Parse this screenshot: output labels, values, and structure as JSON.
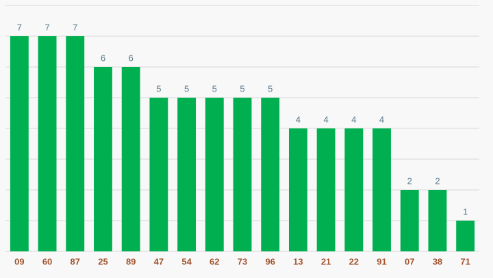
{
  "chart_data": {
    "type": "bar",
    "categories": [
      "09",
      "60",
      "87",
      "25",
      "89",
      "47",
      "54",
      "62",
      "73",
      "96",
      "13",
      "21",
      "22",
      "91",
      "07",
      "38",
      "71"
    ],
    "values": [
      7,
      7,
      7,
      6,
      6,
      5,
      5,
      5,
      5,
      5,
      4,
      4,
      4,
      4,
      2,
      2,
      1
    ],
    "color": "#00b050",
    "ylim": [
      0,
      8
    ],
    "yticks": [
      0,
      1,
      2,
      3,
      4,
      5,
      6,
      7,
      8
    ],
    "grid": true
  }
}
